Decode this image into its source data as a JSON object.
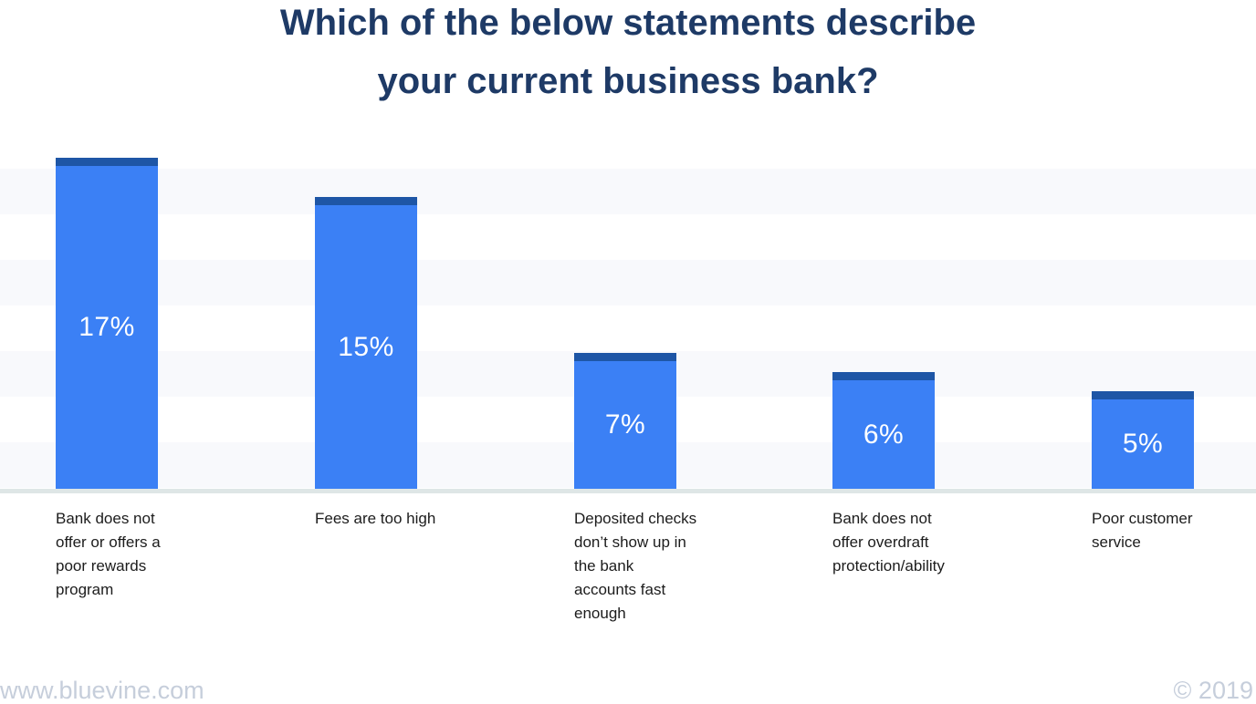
{
  "chart_data": {
    "type": "bar",
    "title": "Which of the below statements describe\nyour current business bank?",
    "categories": [
      "Bank does not\noffer or offers a\npoor rewards\nprogram",
      "Fees are too high",
      "Deposited checks\ndon’t show up in\nthe bank\naccounts fast\nenough",
      "Bank does not\noffer overdraft\nprotection/ability",
      "Poor customer\nservice"
    ],
    "values": [
      17,
      15,
      7,
      6,
      5
    ],
    "value_labels": [
      "17%",
      "15%",
      "7%",
      "6%",
      "5%"
    ],
    "unit": "%",
    "ylim": [
      0,
      17
    ],
    "xlabel": "",
    "ylabel": "",
    "legend": "none",
    "grid": "horizontal-bands"
  },
  "colors": {
    "background": "#ffffff",
    "title": "#1e3a66",
    "bar": "#3b80f5",
    "bar_cap": "#1e56a6",
    "grid_band": "#f8f9fc",
    "axis_line": "#dee6e6",
    "value_label": "#ffffff",
    "category_label": "#1c1c1c",
    "footer_text": "#c6cedb"
  },
  "footer": {
    "website": "www.bluevine.com",
    "copyright": "© 2019"
  }
}
